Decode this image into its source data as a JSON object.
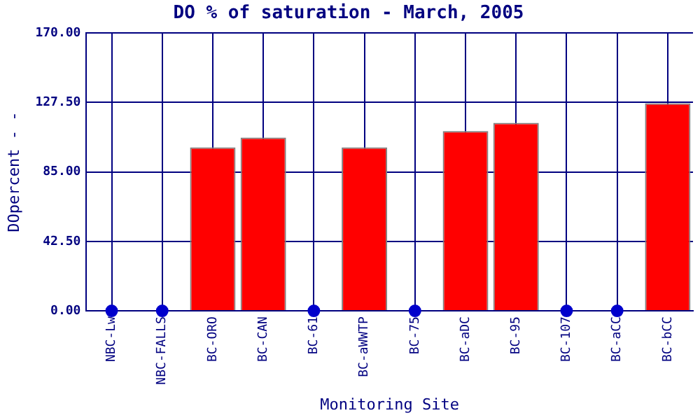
{
  "chart_data": {
    "type": "bar",
    "title": "DO % of saturation - March, 2005",
    "xlabel": "Monitoring Site",
    "ylabel": "DOpercent - -",
    "categories": [
      "NBC-Lw",
      "NBC-FALLS",
      "BC-ORO",
      "BC-CAN",
      "BC-61",
      "BC-aWWTP",
      "BC-75",
      "BC-aDC",
      "BC-95",
      "BC-107",
      "BC-aCC",
      "BC-bCC"
    ],
    "series": [
      {
        "color": "#ff0000",
        "values": [
          null,
          null,
          100,
          106,
          null,
          100,
          null,
          110,
          115,
          null,
          null,
          127
        ]
      },
      {
        "type": "scatter",
        "color": "#0000cc",
        "values": [
          0,
          0,
          null,
          null,
          0,
          null,
          0,
          null,
          null,
          0,
          0,
          null
        ]
      }
    ],
    "ylim": [
      0,
      170
    ],
    "yticks": [
      {
        "value": 0,
        "label": "0.00"
      },
      {
        "value": 42.5,
        "label": "42.50"
      },
      {
        "value": 85,
        "label": "85.00"
      },
      {
        "value": 127.5,
        "label": "127.50"
      },
      {
        "value": 170,
        "label": "170.00"
      }
    ],
    "grid": true,
    "marker": "circle"
  }
}
